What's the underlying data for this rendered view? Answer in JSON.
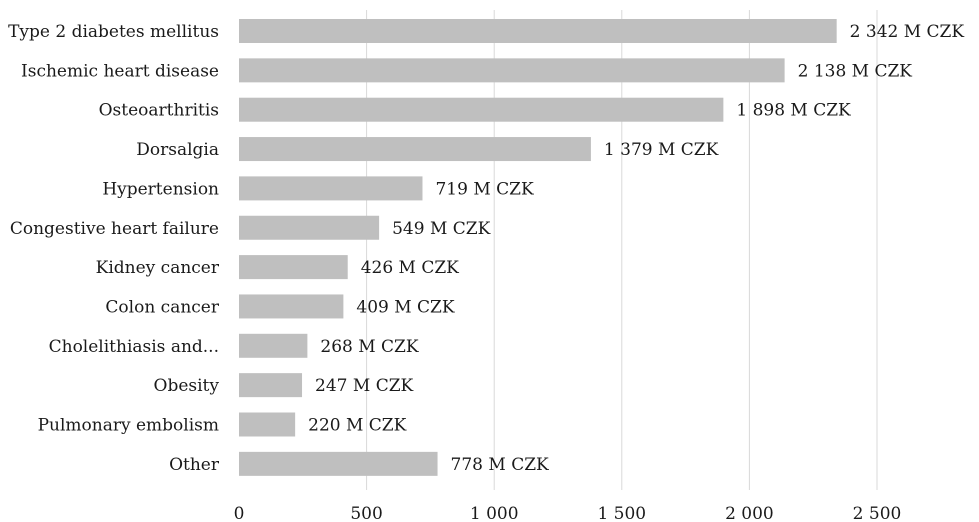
{
  "chart_data": {
    "type": "bar",
    "orientation": "horizontal",
    "categories": [
      "Type 2 diabetes mellitus",
      "Ischemic heart disease",
      "Osteoarthritis",
      "Dorsalgia",
      "Hypertension",
      "Congestive heart failure",
      "Kidney cancer",
      "Colon cancer",
      "Cholelithiasis and...",
      "Obesity",
      "Pulmonary embolism",
      "Other"
    ],
    "values": [
      2342,
      2138,
      1898,
      1379,
      719,
      549,
      426,
      409,
      268,
      247,
      220,
      778
    ],
    "data_labels": [
      "2 342 M CZK",
      "2 138 M CZK",
      "1 898 M CZK",
      "1 379 M CZK",
      "719 M CZK",
      "549 M CZK",
      "426 M CZK",
      "409 M CZK",
      "268 M CZK",
      "247 M CZK",
      "220 M CZK",
      "778 M CZK"
    ],
    "xlim": [
      0,
      2500
    ],
    "x_ticks": [
      0,
      500,
      1000,
      1500,
      2000,
      2500
    ],
    "x_tick_labels": [
      "0",
      "500",
      "1 000",
      "1 500",
      "2 000",
      "2 500"
    ],
    "grid": "vertical",
    "legend": "none",
    "colors": {
      "bar": "#bfbfbf",
      "grid": "#d9d9d9",
      "text": "#1a1a1a"
    }
  }
}
